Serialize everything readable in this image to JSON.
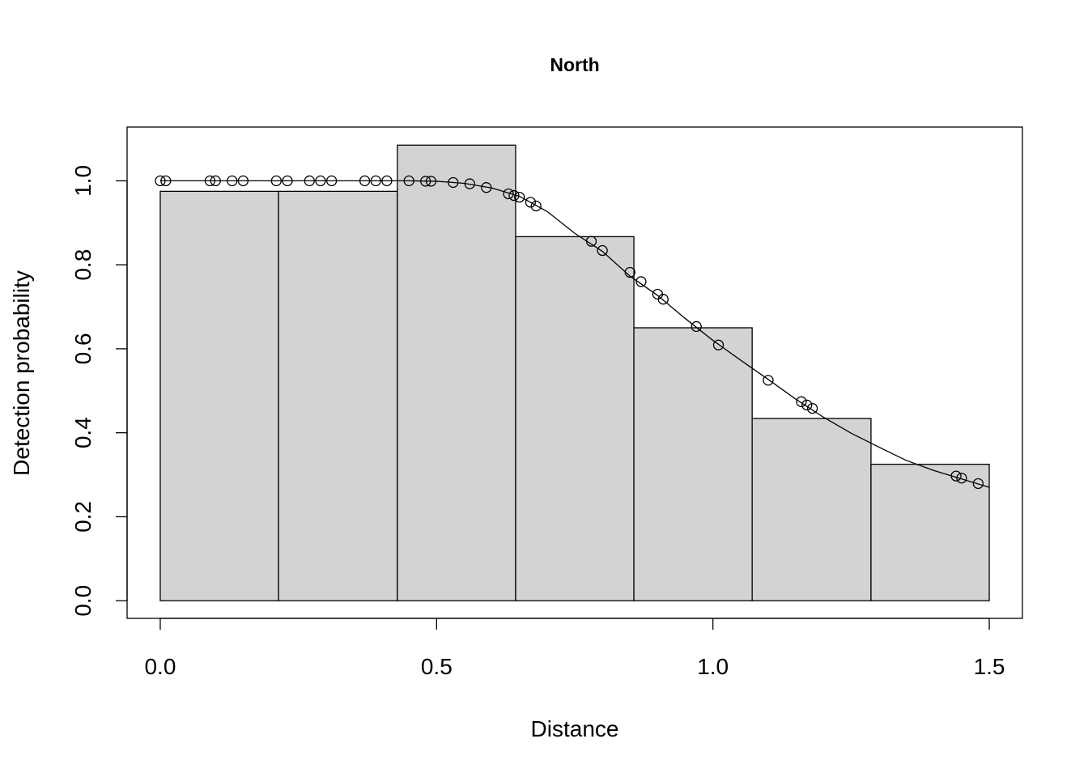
{
  "chart_data": {
    "type": "bar",
    "title": "North",
    "xlabel": "Distance",
    "ylabel": "Detection probability",
    "xlim": [
      -0.06,
      1.56
    ],
    "ylim": [
      -0.042,
      1.128
    ],
    "xticks": [
      0.0,
      0.5,
      1.0,
      1.5
    ],
    "xtick_labels": [
      "0.0",
      "0.5",
      "1.0",
      "1.5"
    ],
    "yticks": [
      0.0,
      0.2,
      0.4,
      0.6,
      0.8,
      1.0
    ],
    "ytick_labels": [
      "0.0",
      "0.2",
      "0.4",
      "0.6",
      "0.8",
      "1.0"
    ],
    "grid": false,
    "colors": {
      "bar_fill": "#d3d3d3",
      "stroke": "#000000"
    },
    "bins": [
      {
        "x0": 0.0,
        "x1": 0.214,
        "height": 0.975
      },
      {
        "x0": 0.214,
        "x1": 0.429,
        "height": 0.975
      },
      {
        "x0": 0.429,
        "x1": 0.643,
        "height": 1.085
      },
      {
        "x0": 0.643,
        "x1": 0.857,
        "height": 0.867
      },
      {
        "x0": 0.857,
        "x1": 1.071,
        "height": 0.65
      },
      {
        "x0": 1.071,
        "x1": 1.286,
        "height": 0.434
      },
      {
        "x0": 1.286,
        "x1": 1.5,
        "height": 0.325
      }
    ],
    "fitted_curve": [
      [
        0.0,
        1.0
      ],
      [
        0.05,
        1.0
      ],
      [
        0.1,
        1.0
      ],
      [
        0.15,
        1.0
      ],
      [
        0.2,
        1.0
      ],
      [
        0.25,
        1.0
      ],
      [
        0.3,
        1.0
      ],
      [
        0.35,
        1.0
      ],
      [
        0.4,
        1.0
      ],
      [
        0.45,
        1.0
      ],
      [
        0.5,
        0.999
      ],
      [
        0.55,
        0.994
      ],
      [
        0.6,
        0.983
      ],
      [
        0.65,
        0.963
      ],
      [
        0.7,
        0.927
      ],
      [
        0.75,
        0.875
      ],
      [
        0.8,
        0.832
      ],
      [
        0.85,
        0.773
      ],
      [
        0.9,
        0.727
      ],
      [
        0.95,
        0.672
      ],
      [
        1.0,
        0.62
      ],
      [
        1.05,
        0.573
      ],
      [
        1.1,
        0.527
      ],
      [
        1.15,
        0.48
      ],
      [
        1.2,
        0.437
      ],
      [
        1.25,
        0.399
      ],
      [
        1.3,
        0.366
      ],
      [
        1.35,
        0.334
      ],
      [
        1.4,
        0.31
      ],
      [
        1.45,
        0.29
      ],
      [
        1.5,
        0.27
      ]
    ],
    "points": [
      [
        0.0,
        1.0
      ],
      [
        0.01,
        1.0
      ],
      [
        0.09,
        1.0
      ],
      [
        0.1,
        1.0
      ],
      [
        0.13,
        1.0
      ],
      [
        0.15,
        1.0
      ],
      [
        0.21,
        1.0
      ],
      [
        0.23,
        1.0
      ],
      [
        0.27,
        1.0
      ],
      [
        0.29,
        1.0
      ],
      [
        0.31,
        1.0
      ],
      [
        0.37,
        1.0
      ],
      [
        0.39,
        1.0
      ],
      [
        0.41,
        1.0
      ],
      [
        0.45,
        1.0
      ],
      [
        0.48,
        0.999
      ],
      [
        0.49,
        0.999
      ],
      [
        0.53,
        0.996
      ],
      [
        0.56,
        0.993
      ],
      [
        0.59,
        0.984
      ],
      [
        0.63,
        0.969
      ],
      [
        0.64,
        0.965
      ],
      [
        0.65,
        0.961
      ],
      [
        0.67,
        0.949
      ],
      [
        0.68,
        0.94
      ],
      [
        0.78,
        0.856
      ],
      [
        0.8,
        0.834
      ],
      [
        0.85,
        0.782
      ],
      [
        0.87,
        0.76
      ],
      [
        0.9,
        0.73
      ],
      [
        0.91,
        0.718
      ],
      [
        0.97,
        0.653
      ],
      [
        1.01,
        0.609
      ],
      [
        1.1,
        0.525
      ],
      [
        1.16,
        0.474
      ],
      [
        1.17,
        0.466
      ],
      [
        1.18,
        0.458
      ],
      [
        1.44,
        0.297
      ],
      [
        1.45,
        0.292
      ],
      [
        1.48,
        0.279
      ]
    ]
  }
}
